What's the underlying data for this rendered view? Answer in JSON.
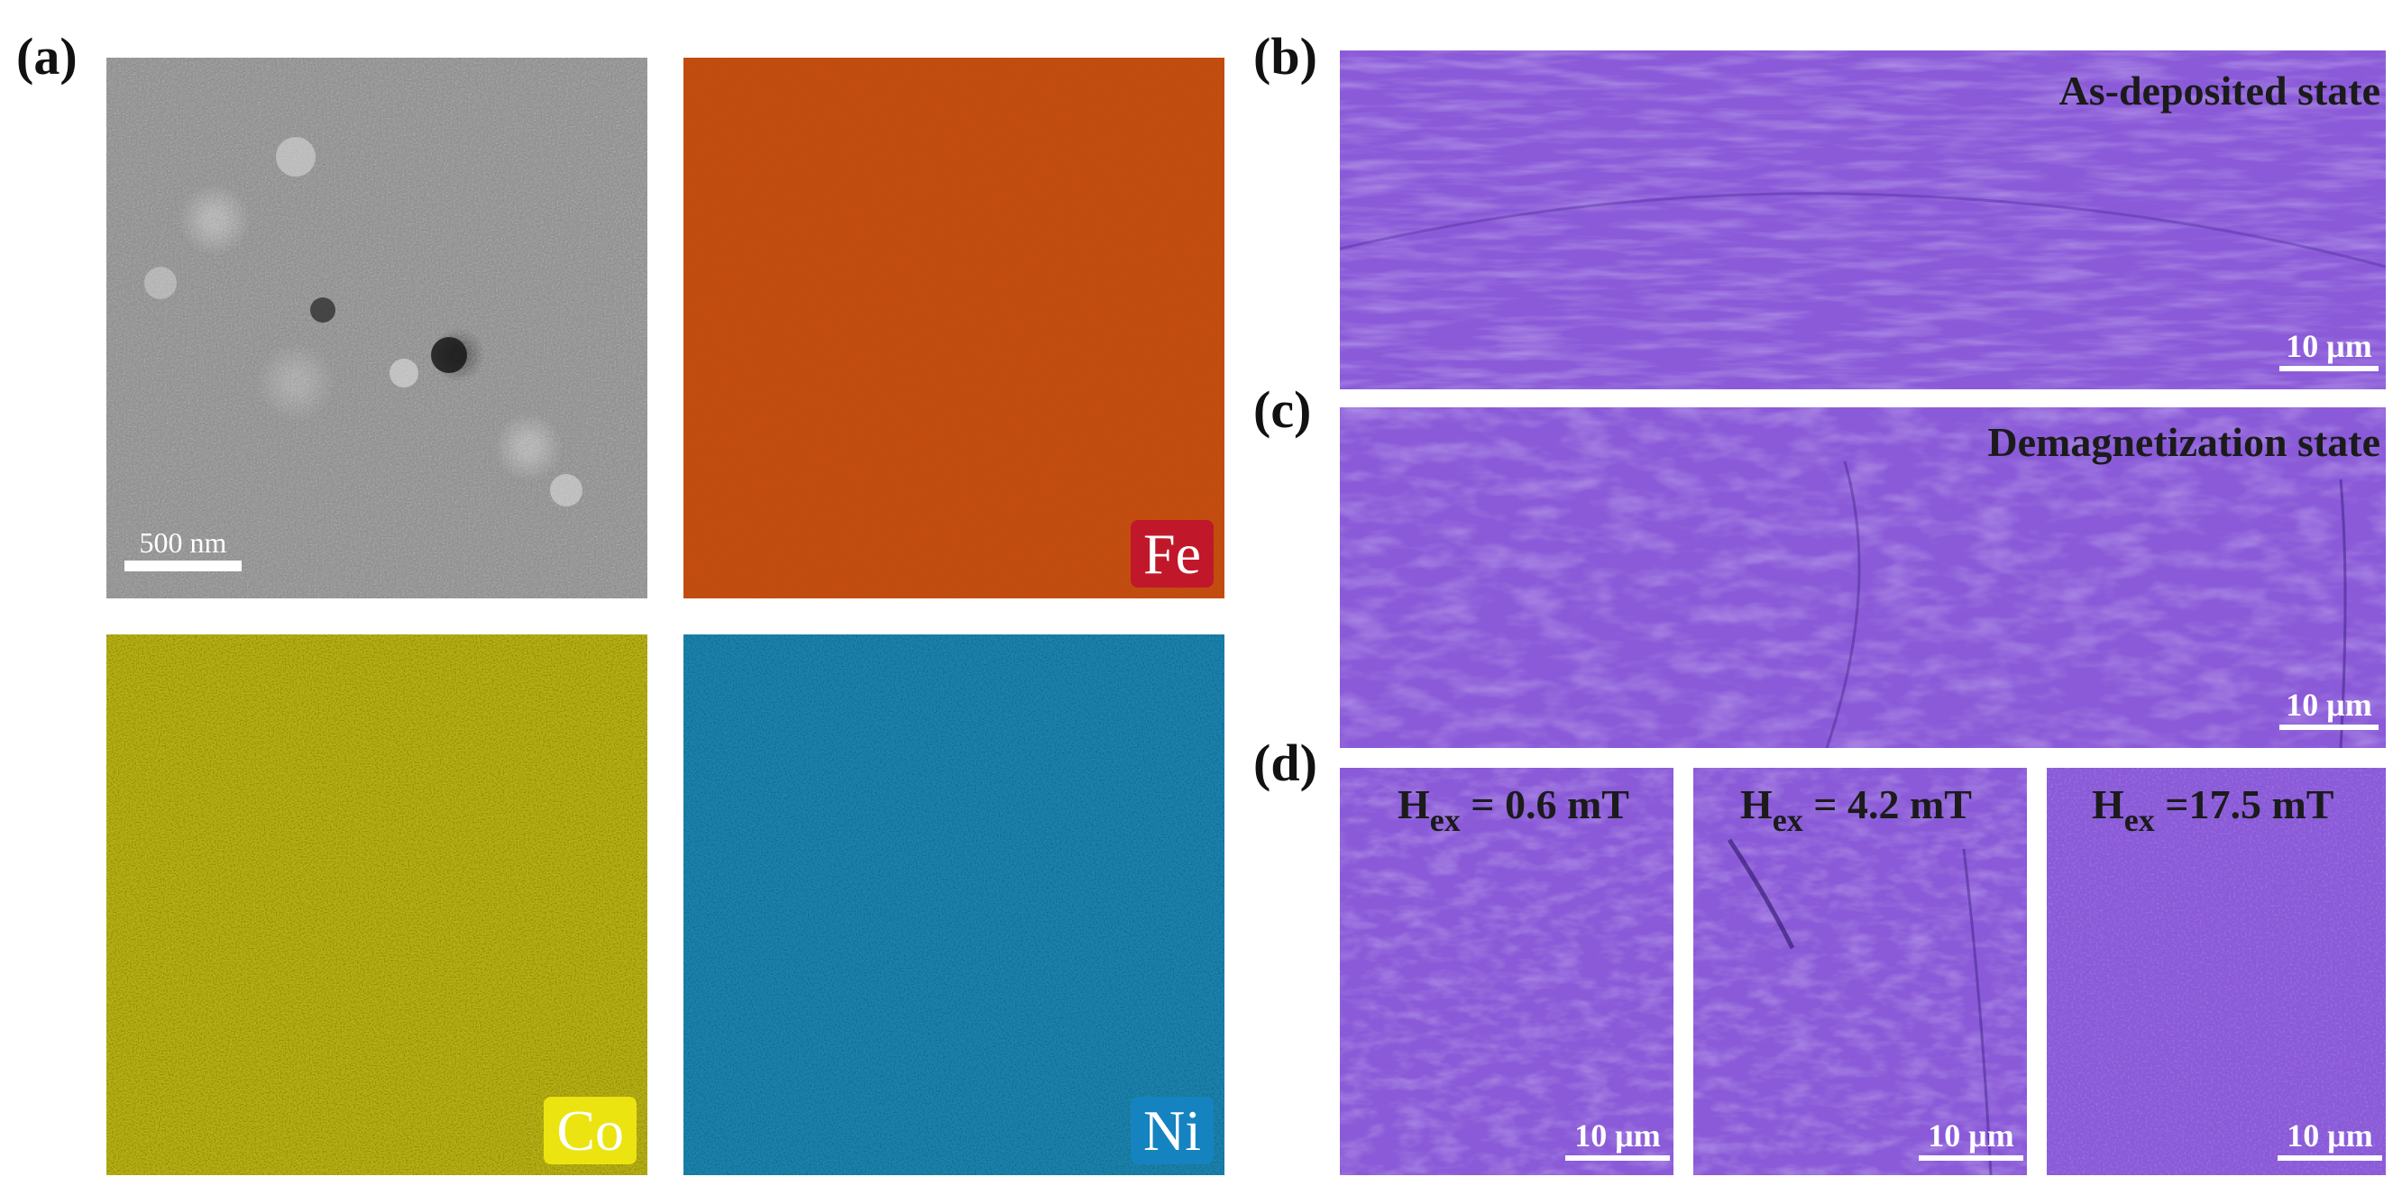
{
  "panels": {
    "a": {
      "label": "(a)",
      "scalebar": "500 nm",
      "elements": {
        "fe": "Fe",
        "co": "Co",
        "ni": "Ni"
      },
      "colors": {
        "fe_map": "#c84a13",
        "co_map": "#b9b214",
        "ni_map": "#1d83ad",
        "fe_badge": "#c0182a",
        "co_badge": "#ece410",
        "ni_badge": "#1583bf"
      }
    },
    "b": {
      "label": "(b)",
      "state": "As-deposited state",
      "scalebar": "10 μm"
    },
    "c": {
      "label": "(c)",
      "state": "Demagnetization state",
      "scalebar": "10 μm"
    },
    "d": {
      "label": "(d)",
      "fields": [
        {
          "h": "H",
          "sub": "ex",
          "value": "= 0.6 mT",
          "scalebar": "10 μm"
        },
        {
          "h": "H",
          "sub": "ex",
          "value": "= 4.2 mT",
          "scalebar": "10 μm"
        },
        {
          "h": "H",
          "sub": "ex",
          "value": "=17.5 mT",
          "scalebar": "10 μm"
        }
      ]
    }
  },
  "colors": {
    "mfm": "#8a5ad8"
  }
}
